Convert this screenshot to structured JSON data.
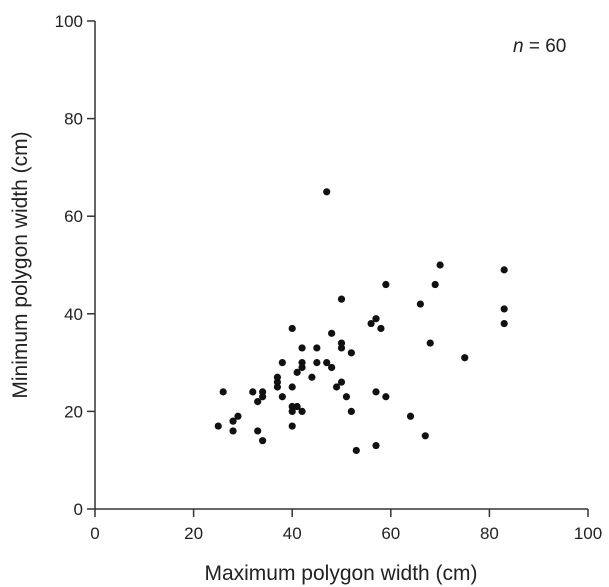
{
  "chart_data": {
    "type": "scatter",
    "xlabel": "Maximum polygon width (cm)",
    "ylabel": "Minimum polygon width (cm)",
    "xlim": [
      0,
      100
    ],
    "ylim": [
      0,
      100
    ],
    "x_ticks": [
      "0",
      "20",
      "40",
      "60",
      "80",
      "100"
    ],
    "y_ticks": [
      "0",
      "20",
      "40",
      "60",
      "80",
      "100"
    ],
    "annotation": {
      "var": "n",
      "text": " = 60"
    },
    "grid": false,
    "points": [
      {
        "x": 25,
        "y": 17
      },
      {
        "x": 26,
        "y": 24
      },
      {
        "x": 28,
        "y": 18
      },
      {
        "x": 28,
        "y": 16
      },
      {
        "x": 29,
        "y": 19
      },
      {
        "x": 32,
        "y": 24
      },
      {
        "x": 33,
        "y": 22
      },
      {
        "x": 33,
        "y": 16
      },
      {
        "x": 34,
        "y": 23
      },
      {
        "x": 34,
        "y": 24
      },
      {
        "x": 34,
        "y": 14
      },
      {
        "x": 37,
        "y": 25
      },
      {
        "x": 37,
        "y": 26
      },
      {
        "x": 37,
        "y": 27
      },
      {
        "x": 38,
        "y": 30
      },
      {
        "x": 38,
        "y": 23
      },
      {
        "x": 40,
        "y": 37
      },
      {
        "x": 40,
        "y": 25
      },
      {
        "x": 40,
        "y": 21
      },
      {
        "x": 40,
        "y": 20
      },
      {
        "x": 40,
        "y": 17
      },
      {
        "x": 41,
        "y": 28
      },
      {
        "x": 41,
        "y": 21
      },
      {
        "x": 42,
        "y": 33
      },
      {
        "x": 42,
        "y": 30
      },
      {
        "x": 42,
        "y": 29
      },
      {
        "x": 42,
        "y": 20
      },
      {
        "x": 44,
        "y": 27
      },
      {
        "x": 45,
        "y": 30
      },
      {
        "x": 45,
        "y": 33
      },
      {
        "x": 47,
        "y": 65
      },
      {
        "x": 47,
        "y": 30
      },
      {
        "x": 48,
        "y": 36
      },
      {
        "x": 49,
        "y": 25
      },
      {
        "x": 50,
        "y": 43
      },
      {
        "x": 50,
        "y": 34
      },
      {
        "x": 50,
        "y": 33
      },
      {
        "x": 50,
        "y": 26
      },
      {
        "x": 51,
        "y": 23
      },
      {
        "x": 52,
        "y": 32
      },
      {
        "x": 52,
        "y": 20
      },
      {
        "x": 53,
        "y": 12
      },
      {
        "x": 56,
        "y": 38
      },
      {
        "x": 57,
        "y": 39
      },
      {
        "x": 57,
        "y": 24
      },
      {
        "x": 57,
        "y": 13
      },
      {
        "x": 58,
        "y": 37
      },
      {
        "x": 59,
        "y": 46
      },
      {
        "x": 59,
        "y": 23
      },
      {
        "x": 64,
        "y": 19
      },
      {
        "x": 66,
        "y": 42
      },
      {
        "x": 67,
        "y": 15
      },
      {
        "x": 68,
        "y": 34
      },
      {
        "x": 69,
        "y": 46
      },
      {
        "x": 70,
        "y": 50
      },
      {
        "x": 75,
        "y": 31
      },
      {
        "x": 83,
        "y": 49
      },
      {
        "x": 83,
        "y": 41
      },
      {
        "x": 83,
        "y": 38
      },
      {
        "x": 48,
        "y": 29
      }
    ]
  }
}
